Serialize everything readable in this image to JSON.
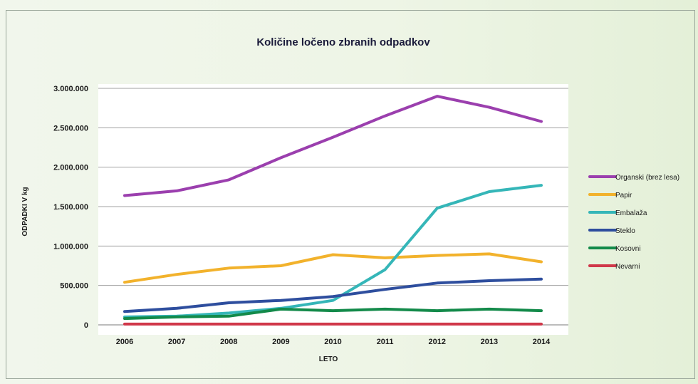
{
  "chart_data": {
    "type": "line",
    "title": "Količine ločeno zbranih odpadkov",
    "xlabel": "LETO",
    "ylabel": "ODPADKI V kg",
    "categories": [
      "2006",
      "2007",
      "2008",
      "2009",
      "2010",
      "2011",
      "2012",
      "2013",
      "2014"
    ],
    "ylim": [
      0,
      3000000
    ],
    "yticks": [
      0,
      500000,
      1000000,
      1500000,
      2000000,
      2500000,
      3000000
    ],
    "ytick_labels": [
      "0",
      "500.000",
      "1.000.000",
      "1.500.000",
      "2.000.000",
      "2.500.000",
      "3.000.000"
    ],
    "grid": true,
    "legend_position": "right",
    "series": [
      {
        "name": "Organski (brez lesa)",
        "color": "#9b3fae",
        "values": [
          1640000,
          1700000,
          1840000,
          2120000,
          2380000,
          2650000,
          2900000,
          2760000,
          2580000
        ]
      },
      {
        "name": "Papir",
        "color": "#f2b22c",
        "values": [
          540000,
          640000,
          720000,
          750000,
          890000,
          850000,
          880000,
          900000,
          800000
        ]
      },
      {
        "name": "Embalaža",
        "color": "#35b6b8",
        "values": [
          100000,
          110000,
          150000,
          210000,
          310000,
          700000,
          1480000,
          1690000,
          1770000
        ]
      },
      {
        "name": "Steklo",
        "color": "#2e4e9e",
        "values": [
          170000,
          210000,
          280000,
          310000,
          360000,
          450000,
          530000,
          560000,
          580000
        ]
      },
      {
        "name": "Kosovni",
        "color": "#138a4a",
        "values": [
          80000,
          100000,
          110000,
          200000,
          180000,
          200000,
          180000,
          200000,
          180000
        ]
      },
      {
        "name": "Nevarni",
        "color": "#d0384a",
        "values": [
          10000,
          10000,
          10000,
          10000,
          10000,
          10000,
          10000,
          10000,
          10000
        ]
      }
    ]
  }
}
